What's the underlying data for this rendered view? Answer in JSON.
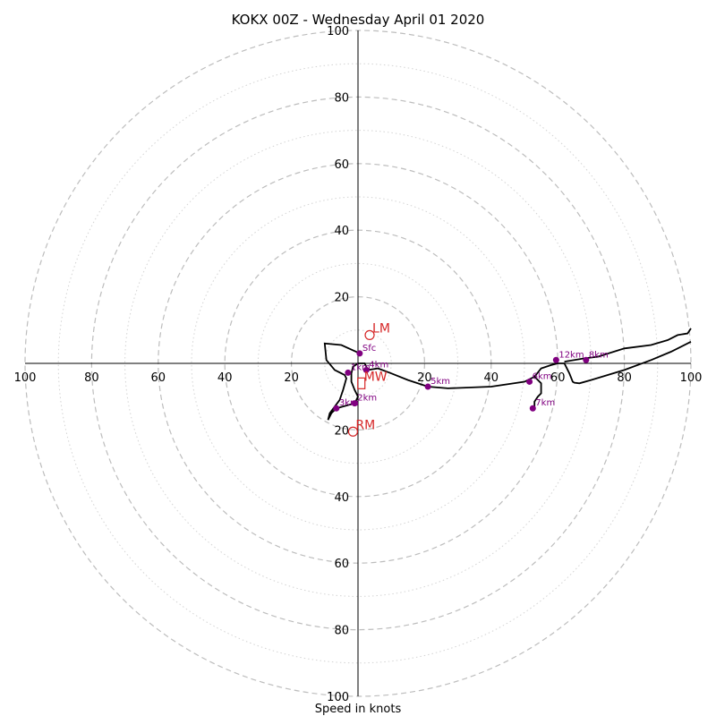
{
  "chart_data": {
    "type": "hodograph",
    "title": "KOKX 00Z - Wednesday April 01 2020",
    "xlabel": "Speed in knots",
    "xlim": [
      -100,
      100
    ],
    "ylim": [
      -100,
      100
    ],
    "major_rings": [
      20,
      40,
      60,
      80,
      100
    ],
    "minor_rings": [
      10,
      30,
      50,
      70,
      90
    ],
    "x_tick_labels": [
      "100",
      "80",
      "60",
      "40",
      "20",
      "20",
      "40",
      "60",
      "80",
      "100"
    ],
    "x_tick_values": [
      -100,
      -80,
      -60,
      -40,
      -20,
      20,
      40,
      60,
      80,
      100
    ],
    "y_tick_labels": [
      "100",
      "80",
      "60",
      "40",
      "20",
      "20",
      "40",
      "60",
      "80",
      "100"
    ],
    "y_tick_values": [
      100,
      80,
      60,
      40,
      20,
      -20,
      -40,
      -60,
      -80,
      -100
    ],
    "hodograph_trace": [
      [
        0.5,
        3
      ],
      [
        -5,
        5.5
      ],
      [
        -10,
        6
      ],
      [
        -9.5,
        1
      ],
      [
        -7,
        -2
      ],
      [
        -4,
        -3.5
      ],
      [
        -3.5,
        -4.5
      ],
      [
        -4.5,
        -8
      ],
      [
        -5.5,
        -11
      ],
      [
        -8.5,
        -15
      ],
      [
        -9,
        -17
      ],
      [
        -8,
        -15
      ],
      [
        -6.5,
        -13.5
      ],
      [
        -1,
        -12
      ],
      [
        0,
        -10
      ],
      [
        -1,
        -8
      ],
      [
        -2,
        -5.5
      ],
      [
        -2,
        -3
      ],
      [
        -1.5,
        -1
      ],
      [
        0,
        0
      ],
      [
        2,
        0
      ],
      [
        3,
        -2
      ],
      [
        6,
        -1.5
      ],
      [
        10,
        -3
      ],
      [
        15,
        -5
      ],
      [
        21,
        -7
      ],
      [
        27,
        -7.5
      ],
      [
        40,
        -7
      ],
      [
        50,
        -5.5
      ],
      [
        53,
        -4
      ],
      [
        55,
        -1.5
      ],
      [
        58,
        -0.5
      ],
      [
        60,
        0
      ],
      [
        62,
        0
      ],
      [
        63.5,
        -3
      ],
      [
        64.5,
        -5.5
      ],
      [
        65,
        -5.8
      ],
      [
        66.5,
        -6
      ],
      [
        70,
        -5
      ],
      [
        80,
        -2
      ],
      [
        88,
        1
      ],
      [
        94,
        3.5
      ],
      [
        100,
        6.5
      ]
    ],
    "hodograph_branch": [
      [
        100,
        10.5
      ],
      [
        99,
        9
      ],
      [
        96,
        8.5
      ],
      [
        93,
        7
      ],
      [
        88,
        5.5
      ],
      [
        80,
        4.5
      ],
      [
        72,
        2
      ],
      [
        68,
        1.5
      ],
      [
        62,
        0.5
      ]
    ],
    "hodograph_branch2": [
      [
        53,
        -14
      ],
      [
        53,
        -11.5
      ],
      [
        54,
        -10
      ],
      [
        55,
        -9
      ],
      [
        55,
        -6
      ],
      [
        53,
        -4
      ]
    ],
    "height_points": [
      {
        "label": "Sfc",
        "u": 0.5,
        "v": 3
      },
      {
        "label": "1km",
        "u": -3,
        "v": -2.8
      },
      {
        "label": "2km",
        "u": -1,
        "v": -12
      },
      {
        "label": "3km",
        "u": -6.5,
        "v": -13.5
      },
      {
        "label": "4km",
        "u": 2.5,
        "v": -2
      },
      {
        "label": "5km",
        "u": 21,
        "v": -7
      },
      {
        "label": "6km",
        "u": 51.5,
        "v": -5.5
      },
      {
        "label": "7km",
        "u": 52.5,
        "v": -13.5
      },
      {
        "label": "8km",
        "u": 68.5,
        "v": 1
      },
      {
        "label": "12km",
        "u": 59.5,
        "v": 1
      }
    ],
    "storm_motions": [
      {
        "label": "LM",
        "u": 3.5,
        "v": 8.5,
        "shape": "circle"
      },
      {
        "label": "MW",
        "u": 1,
        "v": -6,
        "shape": "square"
      },
      {
        "label": "RM",
        "u": -1.5,
        "v": -20.5,
        "shape": "circle"
      }
    ],
    "colors": {
      "trace": "#000000",
      "points": "#800080",
      "storm_motion": "#d62728",
      "rings": "#bdbdbd"
    }
  }
}
